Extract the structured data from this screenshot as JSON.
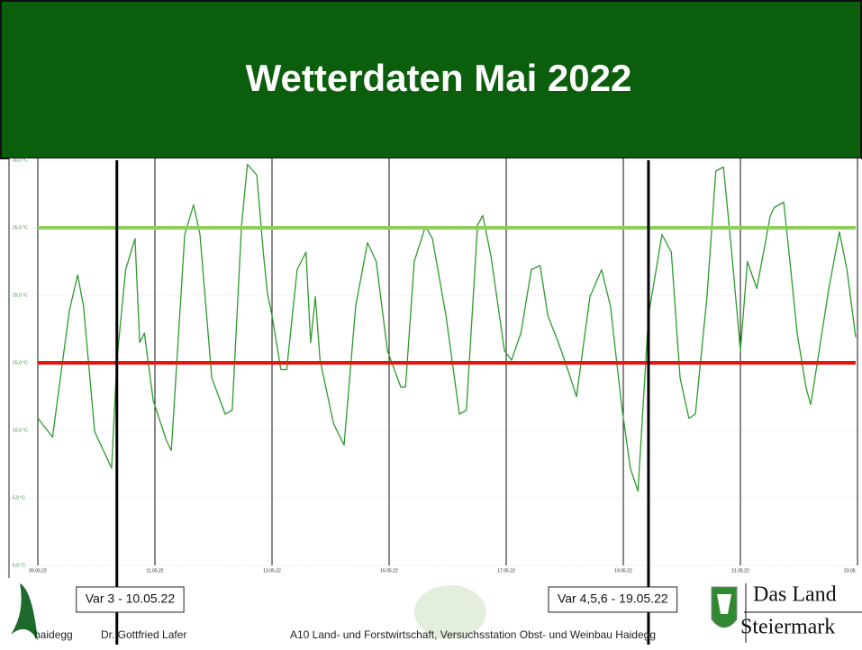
{
  "chart_data": {
    "type": "line",
    "title": "Wetterdaten Mai 2022",
    "x": [
      9.0,
      9.25,
      9.54,
      9.68,
      9.78,
      9.97,
      10.12,
      10.26,
      10.35,
      10.5,
      10.66,
      10.74,
      10.82,
      10.97,
      11.2,
      11.28,
      11.51,
      11.66,
      11.77,
      11.97,
      12.2,
      12.32,
      12.48,
      12.58,
      12.74,
      12.85,
      12.92,
      13.0,
      13.15,
      13.25,
      13.43,
      13.58,
      13.66,
      13.74,
      13.82,
      14.05,
      14.23,
      14.43,
      14.63,
      14.78,
      14.97,
      15.2,
      15.28,
      15.43,
      15.62,
      15.74,
      15.97,
      16.2,
      16.32,
      16.51,
      16.6,
      16.74,
      16.97,
      17.09,
      17.25,
      17.43,
      17.58,
      17.71,
      17.89,
      18.05,
      18.2,
      18.43,
      18.63,
      18.78,
      18.97,
      19.12,
      19.25,
      19.43,
      19.66,
      19.82,
      19.97,
      20.12,
      20.23,
      20.43,
      20.58,
      20.71,
      20.85,
      21.0,
      21.12,
      21.28,
      21.51,
      21.58,
      21.74,
      21.86,
      21.97,
      22.12,
      22.2,
      22.32,
      22.51,
      22.69,
      22.82,
      22.97
    ],
    "series": [
      {
        "color": "#2e9a2e",
        "values": [
          10.9,
          9.5,
          18.9,
          21.5,
          19.2,
          9.9,
          8.5,
          7.2,
          15.2,
          21.9,
          24.2,
          16.5,
          17.2,
          12.2,
          9.2,
          8.5,
          24.5,
          26.7,
          24.5,
          13.9,
          11.2,
          11.5,
          25.2,
          29.7,
          28.9,
          23.2,
          20.2,
          18.5,
          14.5,
          14.5,
          21.9,
          23.2,
          16.5,
          19.9,
          15.2,
          10.5,
          8.9,
          19.2,
          23.9,
          22.5,
          15.9,
          13.2,
          13.2,
          22.5,
          25.1,
          24.2,
          18.5,
          11.2,
          11.5,
          25.2,
          25.9,
          22.9,
          15.9,
          15.2,
          17.2,
          21.9,
          22.2,
          18.5,
          16.5,
          14.5,
          12.5,
          19.9,
          21.9,
          19.2,
          11.9,
          7.2,
          5.5,
          18.5,
          24.5,
          23.2,
          13.9,
          10.9,
          11.2,
          19.9,
          29.2,
          29.5,
          23.2,
          15.9,
          22.5,
          20.5,
          25.9,
          26.5,
          26.9,
          21.9,
          17.2,
          13.2,
          11.9,
          15.2,
          20.5,
          24.7,
          21.9,
          16.9
        ]
      }
    ],
    "xlim": [
      9,
      23
    ],
    "xticks": [
      {
        "value": 9,
        "label": "09.05.22"
      },
      {
        "value": 11,
        "label": "11.05.22"
      },
      {
        "value": 13,
        "label": "13.05.22"
      },
      {
        "value": 15,
        "label": "15.05.22"
      },
      {
        "value": 17,
        "label": "17.05.22"
      },
      {
        "value": 19,
        "label": "19.05.22"
      },
      {
        "value": 21,
        "label": "21.05.22"
      },
      {
        "value": 23,
        "label": "23.05."
      }
    ],
    "ylim": [
      0,
      30
    ],
    "yticks": [
      {
        "value": 0,
        "label": "0,0 °C"
      },
      {
        "value": 5,
        "label": "5,0 °C"
      },
      {
        "value": 10,
        "label": "10,0 °C"
      },
      {
        "value": 15,
        "label": "15,0 °C"
      },
      {
        "value": 20,
        "label": "20,0 °C"
      },
      {
        "value": 25,
        "label": "25,0 °C"
      },
      {
        "value": 30,
        "label": "30,0 °C"
      }
    ],
    "grid": true,
    "hlines": [
      {
        "value": 25,
        "color": "#8fce5a"
      },
      {
        "value": 15,
        "color": "#e8150f"
      }
    ],
    "markers": [
      {
        "x": 10.35,
        "label": "Var 3 - 10.05.22"
      },
      {
        "x": 19.43,
        "label": "Var 4,5,6 - 19.05.22"
      }
    ]
  },
  "footer": {
    "logo_text": "haidegg",
    "author": "Dr. Gottfried Lafer",
    "institution": "A10 Land- und Forstwirtschaft, Versuchsstation Obst- und Weinbau Haidegg",
    "brand_line1": "Das Land",
    "brand_line2": "Steiermark"
  }
}
